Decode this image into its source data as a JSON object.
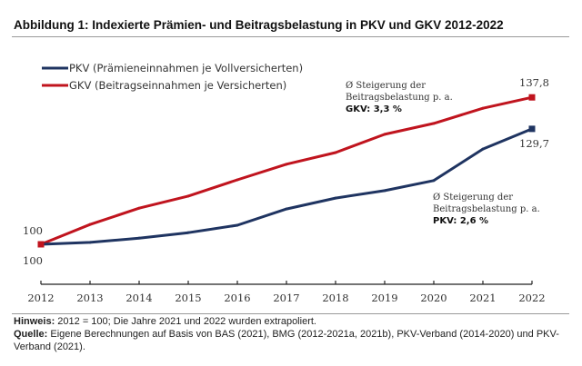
{
  "figure": {
    "title": "Abbildung 1: Indexierte Prämien- und Beitragsbelastung in PKV und GKV 2012-2022",
    "note_label": "Hinweis:",
    "note_text": " 2012 = 100; Die Jahre 2021 und 2022 wurden extrapoliert.",
    "source_label": "Quelle:",
    "source_text": " Eigene Berechnungen auf Basis von BAS (2021), BMG (2012-2021a, 2021b), PKV-Verband (2014-2020) und PKV-Verband (2021)."
  },
  "chart_data": {
    "type": "line",
    "title": "Abbildung 1: Indexierte Prämien- und Beitragsbelastung in PKV und GKV 2012-2022",
    "xlabel": "",
    "ylabel": "",
    "x": [
      "2012",
      "2013",
      "2014",
      "2015",
      "2016",
      "2017",
      "2018",
      "2019",
      "2020",
      "2021",
      "2022"
    ],
    "ylim": [
      92,
      142
    ],
    "grid": false,
    "legend_position": "top-left",
    "series": [
      {
        "name": "PKV (Prämieneinnahmen je Vollversicherten)",
        "key": "pkv",
        "color": "#1F3461",
        "values": [
          100,
          100.5,
          101.6,
          103.0,
          104.9,
          109.1,
          111.9,
          113.8,
          116.4,
          124.5,
          129.7
        ]
      },
      {
        "name": "GKV (Beitragseinnahmen je Versicherten)",
        "key": "gkv",
        "color": "#C0141E",
        "values": [
          100,
          105.1,
          109.3,
          112.4,
          116.6,
          120.6,
          123.6,
          128.3,
          131.1,
          135.0,
          137.8
        ]
      }
    ],
    "data_labels": {
      "gkv_start": "100",
      "pkv_start": "100",
      "gkv_end": "137,8",
      "pkv_end": "129,7"
    },
    "annotations": {
      "gkv": {
        "line1": "Ø Steigerung der",
        "line2": "Beitragsbelastung p. a.",
        "line3": "GKV: 3,3 %"
      },
      "pkv": {
        "line1": "Ø Steigerung der",
        "line2": "Beitragsbelastung p. a.",
        "line3": "PKV: 2,6 %"
      }
    }
  }
}
